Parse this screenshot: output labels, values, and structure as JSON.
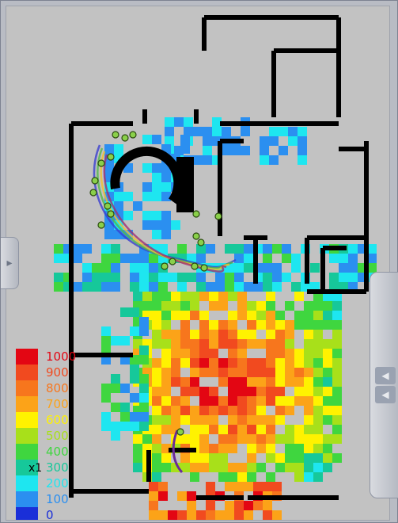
{
  "legend": {
    "scale_label": "x1",
    "entries": [
      {
        "label": "1000",
        "color": "#e30613"
      },
      {
        "label": "900",
        "color": "#f14a1f"
      },
      {
        "label": "800",
        "color": "#f7761d"
      },
      {
        "label": "700",
        "color": "#fca318"
      },
      {
        "label": "600",
        "color": "#fff200"
      },
      {
        "label": "500",
        "color": "#a8e01a"
      },
      {
        "label": "400",
        "color": "#3fd63f"
      },
      {
        "label": "300",
        "color": "#16c89a"
      },
      {
        "label": "200",
        "color": "#1ee6f0"
      },
      {
        "label": "100",
        "color": "#2b8ff0"
      },
      {
        "label": "0",
        "color": "#1a2fd8"
      }
    ]
  },
  "colors": {
    "background": "#c2c2c2",
    "wall": "#000000",
    "marker": "#8ad04a"
  },
  "left_tab_icon": "chevron-right-icon",
  "right_tab_icons": [
    "chevron-left-icon",
    "chevron-left-icon"
  ]
}
